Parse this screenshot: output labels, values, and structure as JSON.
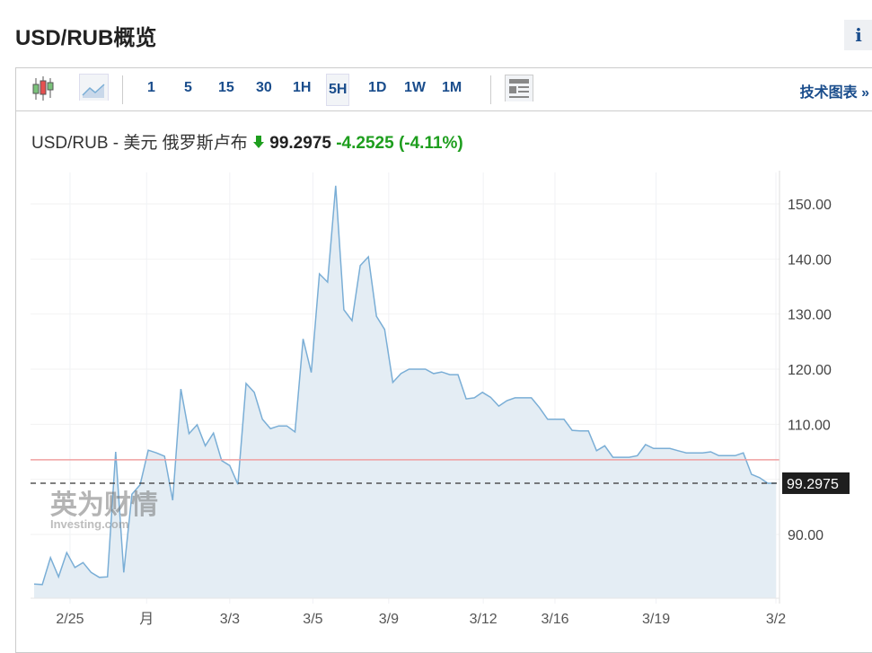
{
  "header": {
    "title": "USD/RUB概览",
    "info_label": "i"
  },
  "toolbar": {
    "chart_types": [
      {
        "icon": "candlestick-icon"
      },
      {
        "icon": "area-chart-icon"
      }
    ],
    "intervals": [
      "1",
      "5",
      "15",
      "30",
      "1H",
      "5H",
      "1D",
      "1W",
      "1M"
    ],
    "selected_interval": "5H",
    "layout_icon": "news-layout-icon",
    "tech_chart_label": "技术图表 »"
  },
  "quote": {
    "name": "USD/RUB - 美元 俄罗斯卢布",
    "direction": "down",
    "direction_icon": "down-arrow-icon",
    "price": "99.2975",
    "change": "-4.2525",
    "change_pct": "(-4.11%)",
    "change_color": "#1e9e1e"
  },
  "watermark": {
    "text": "英为财情",
    "sub": "Investing.com"
  },
  "chart_data": {
    "type": "area",
    "values": [
      81.0,
      80.9,
      85.8,
      82.3,
      86.7,
      84.0,
      84.9,
      83.1,
      82.2,
      82.3,
      105.0,
      83.1,
      97.3,
      99.0,
      105.3,
      104.8,
      104.2,
      96.2,
      116.4,
      108.3,
      109.9,
      106.1,
      108.4,
      103.4,
      102.5,
      99.1,
      117.4,
      115.8,
      110.9,
      109.2,
      109.7,
      109.7,
      108.6,
      125.5,
      119.4,
      137.3,
      135.8,
      153.3,
      130.8,
      128.8,
      138.8,
      140.4,
      129.6,
      127.2,
      117.6,
      119.2,
      120.0,
      120.0,
      120.0,
      119.2,
      119.5,
      119.0,
      119.0,
      114.6,
      114.8,
      115.8,
      114.9,
      113.3,
      114.3,
      114.8,
      114.8,
      114.8,
      113.0,
      110.9,
      110.9,
      110.9,
      108.9,
      108.8,
      108.8,
      105.2,
      106.1,
      104.0,
      104.0,
      104.0,
      104.3,
      106.3,
      105.6,
      105.6,
      105.6,
      105.2,
      104.8,
      104.8,
      104.8,
      105.0,
      104.3,
      104.3,
      104.3,
      104.8,
      100.9,
      100.3,
      99.3,
      99.3
    ],
    "x_ticks": [
      {
        "label": "2/25",
        "at": 4.4
      },
      {
        "label": "月",
        "at": 13.8
      },
      {
        "label": "3/3",
        "at": 24
      },
      {
        "label": "3/5",
        "at": 34.2
      },
      {
        "label": "3/9",
        "at": 43.5
      },
      {
        "label": "3/12",
        "at": 55.1
      },
      {
        "label": "3/16",
        "at": 63.9
      },
      {
        "label": "3/19",
        "at": 76.3
      },
      {
        "label": "3/2",
        "at": 91
      }
    ],
    "y_ticks": [
      "150.00",
      "140.00",
      "130.00",
      "120.00",
      "110.00",
      "90.00"
    ],
    "y_tick_values": [
      150,
      140,
      130,
      120,
      110,
      90
    ],
    "ylim": [
      78.4,
      155
    ],
    "previous_close": 103.55,
    "last_value": 99.2975,
    "last_label": "99.2975",
    "line_color": "#7aaed6",
    "fill_color": "#e4edf4",
    "prev_close_color": "#f0a0a0",
    "grid": true
  }
}
